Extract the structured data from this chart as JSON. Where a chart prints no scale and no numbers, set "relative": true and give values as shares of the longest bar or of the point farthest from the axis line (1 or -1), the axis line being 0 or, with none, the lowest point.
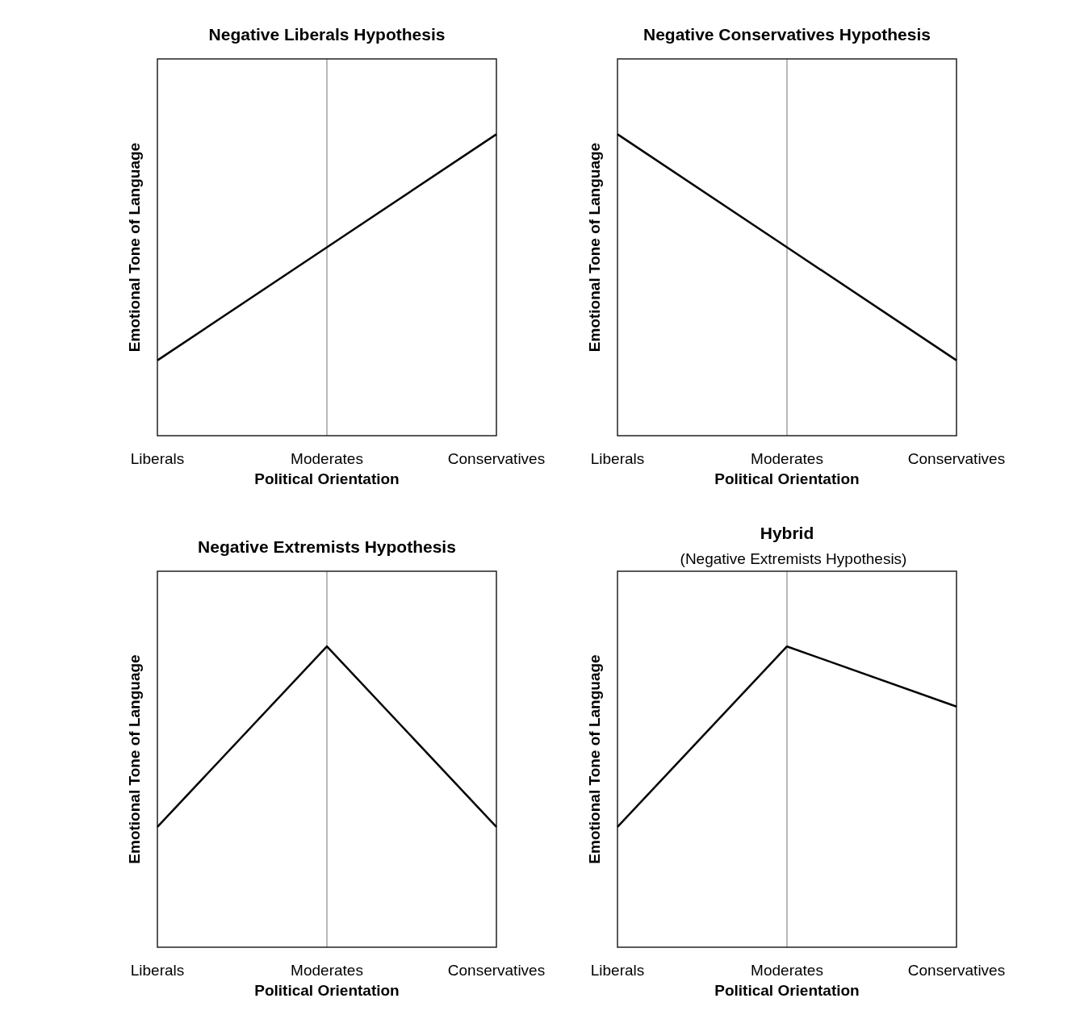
{
  "chart_data": [
    {
      "type": "line",
      "title": "Negative Liberals Hypothesis",
      "xlabel": "Political Orientation",
      "ylabel": "Emotional Tone of Language",
      "categories": [
        "Liberals",
        "Moderates",
        "Conservatives"
      ],
      "relative": true,
      "marker": "none",
      "line_style": "solid",
      "ref_lines": [
        {
          "axis": "x",
          "value": "Moderates",
          "color": "#a0a0a0"
        }
      ],
      "series": [
        {
          "color": "#000000",
          "values": [
            0.25,
            0.625,
            1
          ]
        }
      ]
    },
    {
      "type": "line",
      "title": "Negative Conservatives Hypothesis",
      "xlabel": "Political Orientation",
      "ylabel": "Emotional Tone of Language",
      "categories": [
        "Liberals",
        "Moderates",
        "Conservatives"
      ],
      "relative": true,
      "marker": "none",
      "line_style": "solid",
      "ref_lines": [
        {
          "axis": "x",
          "value": "Moderates",
          "color": "#a0a0a0"
        }
      ],
      "series": [
        {
          "color": "#000000",
          "values": [
            1,
            0.625,
            0.25
          ]
        }
      ]
    },
    {
      "type": "line",
      "title": "Negative Extremists Hypothesis",
      "xlabel": "Political Orientation",
      "ylabel": "Emotional Tone of Language",
      "categories": [
        "Liberals",
        "Moderates",
        "Conservatives"
      ],
      "relative": true,
      "marker": "none",
      "line_style": "solid",
      "ref_lines": [
        {
          "axis": "x",
          "value": "Moderates",
          "color": "#a0a0a0"
        }
      ],
      "series": [
        {
          "color": "#000000",
          "values": [
            0.4,
            1,
            0.4
          ]
        }
      ]
    },
    {
      "type": "line",
      "title": "Hybrid",
      "subtitle": "(Negative Extremists Hypothesis)",
      "xlabel": "Political Orientation",
      "ylabel": "Emotional Tone of Language",
      "categories": [
        "Liberals",
        "Moderates",
        "Conservatives"
      ],
      "relative": true,
      "marker": "none",
      "line_style": "solid",
      "ref_lines": [
        {
          "axis": "x",
          "value": "Moderates",
          "color": "#a0a0a0"
        }
      ],
      "series": [
        {
          "color": "#000000",
          "values": [
            0.4,
            1,
            0.8
          ]
        }
      ]
    }
  ]
}
